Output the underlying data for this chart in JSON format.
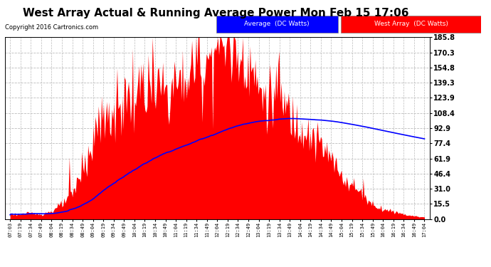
{
  "title": "West Array Actual & Running Average Power Mon Feb 15 17:06",
  "copyright": "Copyright 2016 Cartronics.com",
  "yticks": [
    0.0,
    15.5,
    31.0,
    46.4,
    61.9,
    77.4,
    92.9,
    108.4,
    123.9,
    139.3,
    154.8,
    170.3,
    185.8
  ],
  "ylim": [
    0,
    185.8
  ],
  "xtick_labels": [
    "07:03",
    "07:19",
    "07:34",
    "07:49",
    "08:04",
    "08:19",
    "08:34",
    "08:49",
    "09:04",
    "09:19",
    "09:34",
    "09:49",
    "10:04",
    "10:19",
    "10:34",
    "10:49",
    "11:04",
    "11:19",
    "11:34",
    "11:49",
    "12:04",
    "12:19",
    "12:34",
    "12:49",
    "13:04",
    "13:19",
    "13:34",
    "13:49",
    "14:04",
    "14:19",
    "14:34",
    "14:49",
    "15:04",
    "15:19",
    "15:34",
    "15:49",
    "16:04",
    "16:19",
    "16:34",
    "16:49",
    "17:04"
  ],
  "west_array_color": "#FF0000",
  "average_color": "#0000FF",
  "background_color": "#FFFFFF",
  "grid_color": "#BBBBBB",
  "title_fontsize": 11,
  "west_array_data": [
    5,
    5,
    6,
    5,
    8,
    15,
    25,
    50,
    80,
    100,
    108,
    120,
    125,
    130,
    128,
    132,
    135,
    145,
    155,
    160,
    185,
    178,
    172,
    165,
    130,
    125,
    120,
    108,
    95,
    85,
    75,
    60,
    45,
    35,
    25,
    15,
    10,
    8,
    5,
    3,
    2
  ],
  "noise_seed": 123,
  "noise_scale": 18,
  "avg_color": "#0000FF",
  "legend_avg_label": "Average  (DC Watts)",
  "legend_west_label": "West Array  (DC Watts)"
}
